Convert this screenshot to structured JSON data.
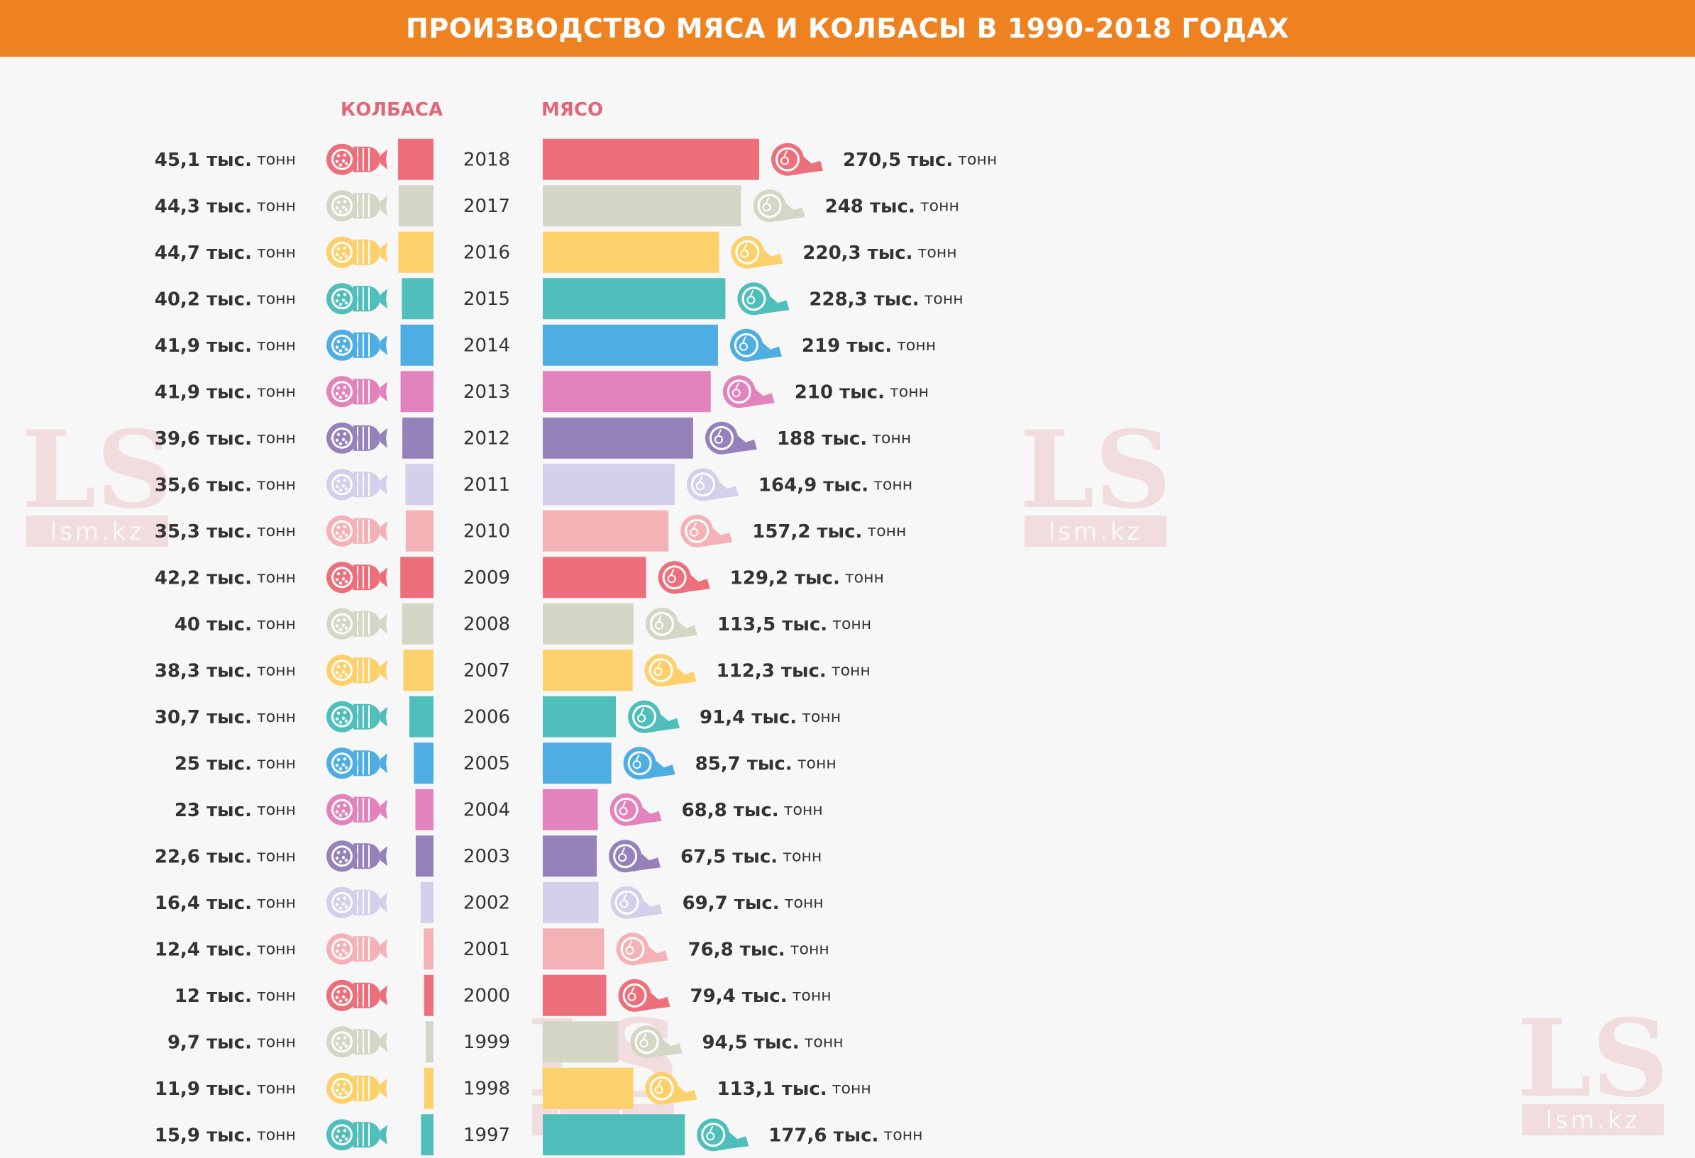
{
  "title": "ПРОИЗВОДСТВО МЯСА И КОЛБАСЫ В 1990-2018 ГОДАХ",
  "colors": {
    "banner": "#ee8220",
    "header_text": "#e0667a",
    "label_text": "#333333",
    "palette": [
      "#ec6f7b",
      "#d5d7c6",
      "#fcd06a",
      "#50bfbb",
      "#4eaee3",
      "#e283bd",
      "#9582ba",
      "#d4cfea",
      "#f4b2b7"
    ]
  },
  "headers": {
    "sausage": "КОЛБАСА",
    "meat": "МЯСО"
  },
  "icons": {
    "sausage": "sausage-icon",
    "meat": "ham-icon"
  },
  "watermark": {
    "logo": "LS",
    "site": "lsm.kz"
  },
  "chart_data": {
    "type": "bar",
    "categories": [
      "2018",
      "2017",
      "2016",
      "2015",
      "2014",
      "2013",
      "2012",
      "2011",
      "2010",
      "2009",
      "2008",
      "2007",
      "2006",
      "2005",
      "2004",
      "2003",
      "2002",
      "2001",
      "2000",
      "1999",
      "1998",
      "1997"
    ],
    "series": [
      {
        "name": "КОЛБАСА",
        "values": [
          45.1,
          44.3,
          44.7,
          40.2,
          41.9,
          41.9,
          39.6,
          35.6,
          35.3,
          42.2,
          40,
          38.3,
          30.7,
          25,
          23,
          22.6,
          16.4,
          12.4,
          12,
          9.7,
          11.9,
          15.9
        ],
        "labels": [
          "45,1 тыс. тонн",
          "44,3 тыс. тонн",
          "44,7 тыс. тонн",
          "40,2 тыс. тонн",
          "41,9 тыс. тонн",
          "41,9 тыс. тонн",
          "39,6 тыс. тонн",
          "35,6 тыс. тонн",
          "35,3 тыс. тонн",
          "42,2 тыс. тонн",
          "40 тыс. тонн",
          "38,3 тыс. тонн",
          "30,7 тыс. тонн",
          "25  тыс. тонн",
          "23  тыс. тонн",
          "22,6 тыс. тонн",
          "16,4 тыс. тонн",
          "12,4 тыс. тонн",
          "12  тыс. тонн",
          "9,7 тыс. тонн",
          "11,9 тыс. тонн",
          "15,9 тыс. тонн"
        ]
      },
      {
        "name": "МЯСО",
        "values": [
          270.5,
          248,
          220.3,
          228.3,
          219,
          210,
          188,
          164.9,
          157.2,
          129.2,
          113.5,
          112.3,
          91.4,
          85.7,
          68.8,
          67.5,
          69.7,
          76.8,
          79.4,
          94.5,
          113.1,
          177.6
        ],
        "labels": [
          "270,5 тыс. тонн",
          "248 тыс. тонн",
          "220,3 тыс. тонн",
          "228,3 тыс. тонн",
          "219 тыс. тонн",
          "210 тыс. тонн",
          "188 тыс. тонн",
          "164,9 тыс. тонн",
          "157,2 тыс. тонн",
          "129,2 тыс. тонн",
          "113,5 тыс. тонн",
          "112,3 тыс. тонн",
          "91,4 тыс. тонн",
          "85,7 тыс. тонн",
          "68,8 тыс. тонн",
          "67,5 тыс. тонн",
          "69,7 тыс. тонн",
          "76,8 тыс. тонн",
          "79,4 тыс. тонн",
          "94,5 тыс. тонн",
          "113,1 тыс. тонн",
          "177,6 тыс. тонн"
        ]
      }
    ]
  }
}
